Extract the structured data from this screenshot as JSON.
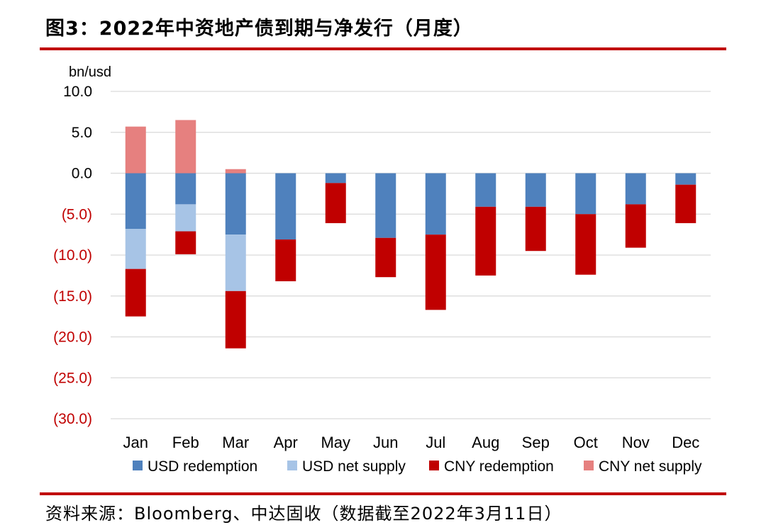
{
  "header": {
    "title": "图3：2022年中资地产债到期与净发行（月度）"
  },
  "footer": {
    "source": "资料来源：Bloomberg、中达固收（数据截至2022年3月11日）"
  },
  "chart_data": {
    "type": "bar",
    "stacked": true,
    "unit_label": "bn/usd",
    "categories": [
      "Jan",
      "Feb",
      "Mar",
      "Apr",
      "May",
      "Jun",
      "Jul",
      "Aug",
      "Sep",
      "Oct",
      "Nov",
      "Dec"
    ],
    "ylim": [
      -30,
      10
    ],
    "y_ticks": [
      10,
      5,
      0,
      -5,
      -10,
      -15,
      -20,
      -25,
      -30
    ],
    "y_tick_labels": [
      "10.0",
      "5.0",
      "0.0",
      "(5.0)",
      "(10.0)",
      "(15.0)",
      "(20.0)",
      "(25.0)",
      "(30.0)"
    ],
    "grid": true,
    "legend_position": "bottom",
    "series": [
      {
        "name": "USD redemption",
        "color": "#4f81bd",
        "values": [
          -6.8,
          -3.8,
          -7.5,
          -8.1,
          -1.2,
          -7.9,
          -7.5,
          -4.1,
          -4.1,
          -5.0,
          -3.8,
          -1.4
        ]
      },
      {
        "name": "USD net supply",
        "color": "#a7c4e6",
        "values": [
          -4.9,
          -3.3,
          -6.9,
          0,
          0,
          0,
          0,
          0,
          0,
          0,
          0,
          0
        ]
      },
      {
        "name": "CNY redemption",
        "color": "#c00000",
        "values": [
          -5.8,
          -2.8,
          -7.0,
          -5.1,
          -4.9,
          -4.8,
          -9.2,
          -8.4,
          -5.4,
          -7.4,
          -5.3,
          -4.7
        ]
      },
      {
        "name": "CNY net supply",
        "color": "#e6807f",
        "values": [
          5.7,
          6.5,
          0.5,
          0,
          0,
          0,
          0,
          0,
          0,
          0,
          0,
          0
        ]
      }
    ],
    "colors": {
      "axis_text_positive": "#000000",
      "axis_text_negative": "#c00000",
      "grid": "#d9d9d9"
    }
  }
}
